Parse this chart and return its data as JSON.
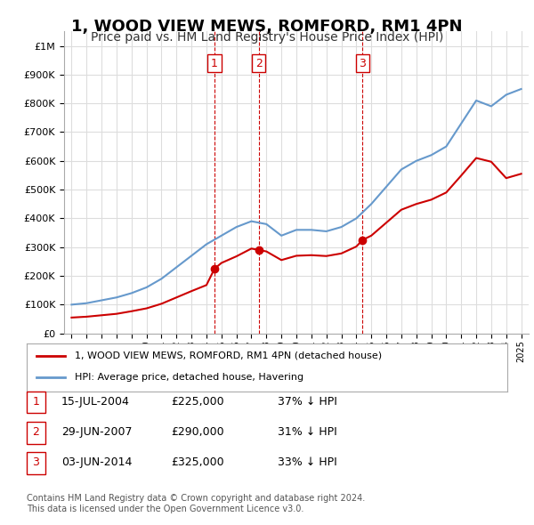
{
  "title": "1, WOOD VIEW MEWS, ROMFORD, RM1 4PN",
  "subtitle": "Price paid vs. HM Land Registry's House Price Index (HPI)",
  "title_fontsize": 13,
  "subtitle_fontsize": 10,
  "background_color": "#ffffff",
  "grid_color": "#dddddd",
  "sale_color": "#cc0000",
  "hpi_color": "#6699cc",
  "vline_color": "#cc0000",
  "sales": [
    {
      "date_num": 2004.54,
      "price": 225000,
      "label": "1"
    },
    {
      "date_num": 2007.49,
      "price": 290000,
      "label": "2"
    },
    {
      "date_num": 2014.42,
      "price": 325000,
      "label": "3"
    }
  ],
  "legend_entries": [
    {
      "label": "1, WOOD VIEW MEWS, ROMFORD, RM1 4PN (detached house)",
      "color": "#cc0000"
    },
    {
      "label": "HPI: Average price, detached house, Havering",
      "color": "#6699cc"
    }
  ],
  "table_rows": [
    {
      "num": "1",
      "date": "15-JUL-2004",
      "price": "£225,000",
      "hpi": "37% ↓ HPI"
    },
    {
      "num": "2",
      "date": "29-JUN-2007",
      "price": "£290,000",
      "hpi": "31% ↓ HPI"
    },
    {
      "num": "3",
      "date": "03-JUN-2014",
      "price": "£325,000",
      "hpi": "33% ↓ HPI"
    }
  ],
  "footnote": "Contains HM Land Registry data © Crown copyright and database right 2024.\nThis data is licensed under the Open Government Licence v3.0.",
  "ylim": [
    0,
    1050000
  ],
  "xlim": [
    1994.5,
    2025.5
  ]
}
